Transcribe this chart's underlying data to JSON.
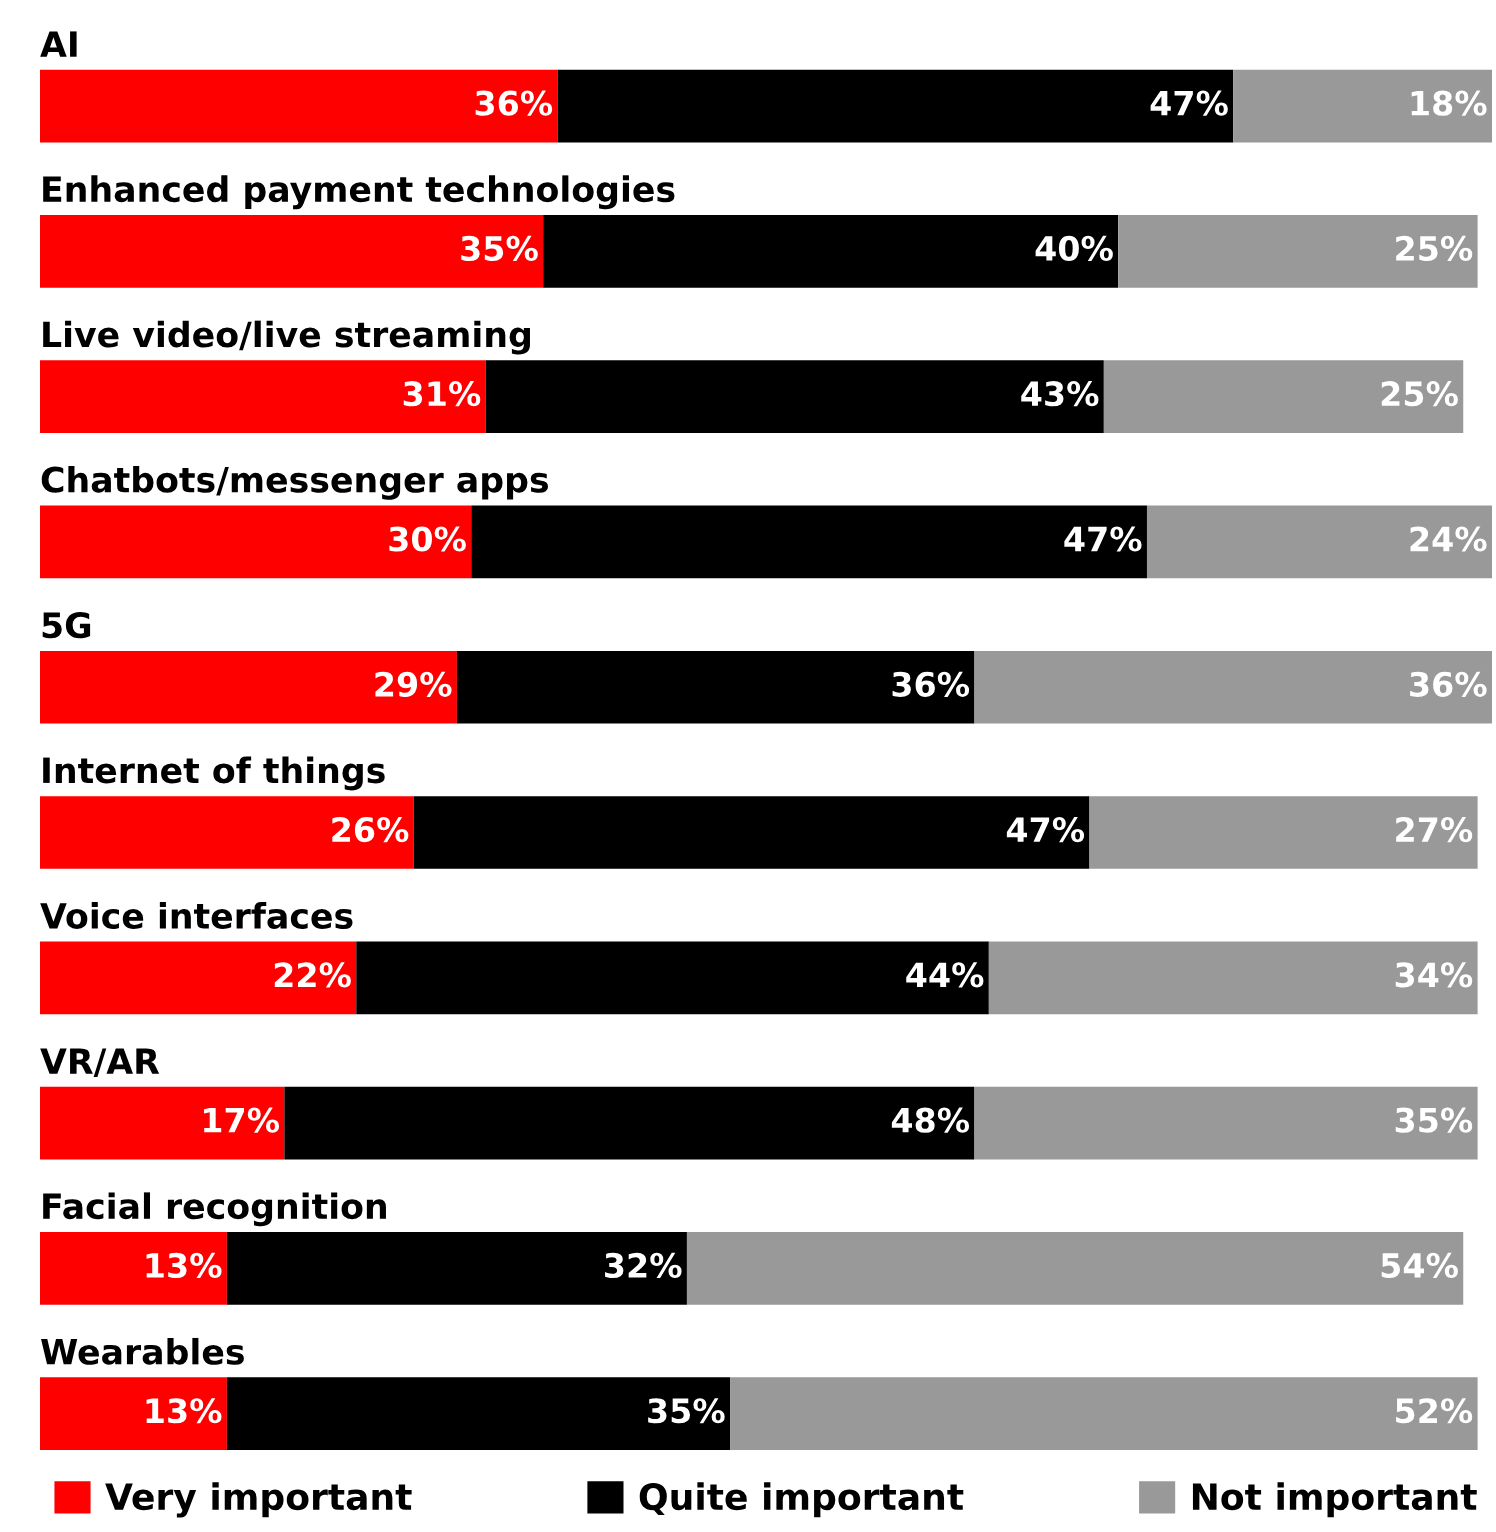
{
  "chart_data": {
    "type": "bar",
    "orientation": "horizontal",
    "stacked": true,
    "legend": "bottom",
    "categories": [
      "AI",
      "Enhanced payment technologies",
      "Live video/live streaming",
      "Chatbots/messenger apps",
      "5G",
      "Internet of things",
      "Voice interfaces",
      "VR/AR",
      "Facial recognition",
      "Wearables"
    ],
    "series": [
      {
        "name": "Very important",
        "color": "#ff0000",
        "values": [
          36,
          35,
          31,
          30,
          29,
          26,
          22,
          17,
          13,
          13
        ],
        "value_labels": [
          "36%",
          "35%",
          "31%",
          "30%",
          "29%",
          "26%",
          "22%",
          "17%",
          "13%",
          "13%"
        ]
      },
      {
        "name": "Quite important",
        "color": "#000000",
        "values": [
          47,
          40,
          43,
          47,
          36,
          47,
          44,
          48,
          32,
          35
        ],
        "value_labels": [
          "47%",
          "40%",
          "43%",
          "47%",
          "36%",
          "47%",
          "44%",
          "48%",
          "32%",
          "35%"
        ]
      },
      {
        "name": "Not important",
        "color": "#999999",
        "values": [
          18,
          25,
          25,
          24,
          36,
          27,
          34,
          35,
          54,
          52
        ],
        "value_labels": [
          "18%",
          "25%",
          "25%",
          "24%",
          "36%",
          "27%",
          "34%",
          "35%",
          "54%",
          "52%"
        ]
      }
    ]
  }
}
